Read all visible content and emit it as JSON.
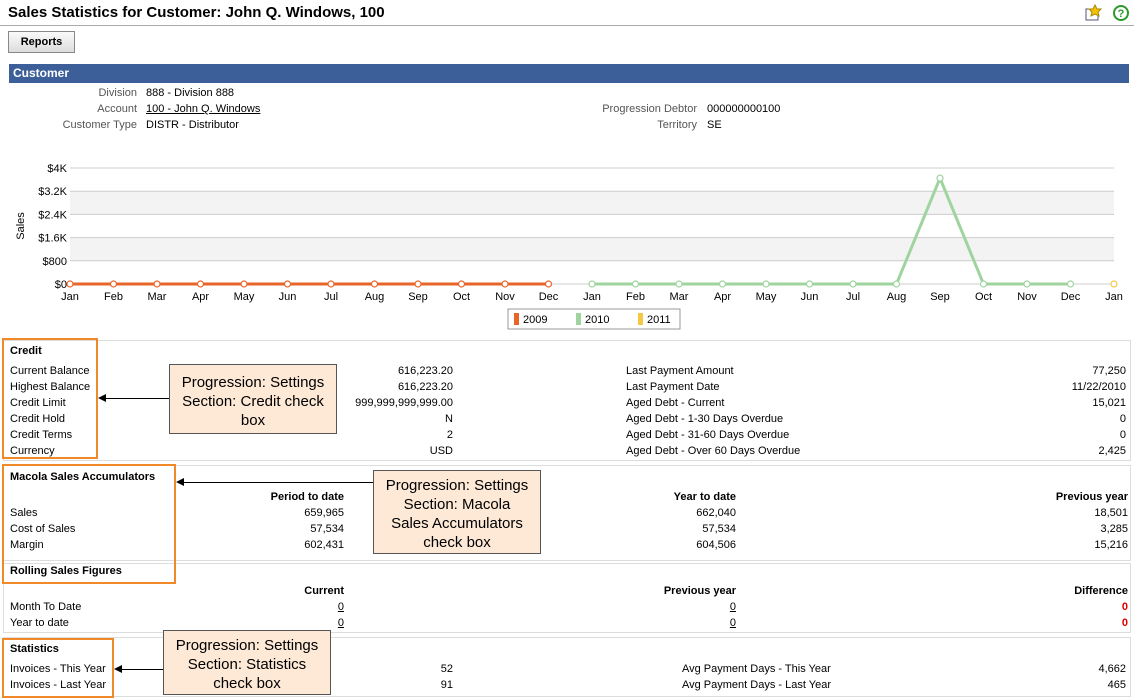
{
  "header": {
    "title": "Sales Statistics for Customer: John Q. Windows, 100",
    "button": "Reports"
  },
  "customer": {
    "title": "Customer",
    "left": [
      {
        "label": "Division",
        "value": "888 - Division 888"
      },
      {
        "label": "Account",
        "value": "100 - John Q. Windows"
      },
      {
        "label": "Customer Type",
        "value": "DISTR - Distributor"
      }
    ],
    "right": [
      {
        "label": "Progression Debtor",
        "value": "000000000100"
      },
      {
        "label": "Territory",
        "value": "SE"
      }
    ]
  },
  "chart_data": {
    "type": "line",
    "y_label": "Sales",
    "categories": [
      "Jan",
      "Feb",
      "Mar",
      "Apr",
      "May",
      "Jun",
      "Jul",
      "Aug",
      "Sep",
      "Oct",
      "Nov",
      "Dec",
      "Jan",
      "Feb",
      "Mar",
      "Apr",
      "May",
      "Jun",
      "Jul",
      "Aug",
      "Sep",
      "Oct",
      "Nov",
      "Dec",
      "Jan"
    ],
    "series": [
      {
        "name": "2009",
        "color": "#e8652a",
        "values": [
          0,
          0,
          0,
          0,
          0,
          0,
          0,
          0,
          0,
          0,
          0,
          0,
          null,
          null,
          null,
          null,
          null,
          null,
          null,
          null,
          null,
          null,
          null,
          null,
          null
        ]
      },
      {
        "name": "2010",
        "color": "#9fd49f",
        "values": [
          null,
          null,
          null,
          null,
          null,
          null,
          null,
          null,
          null,
          null,
          null,
          null,
          0,
          0,
          0,
          0,
          0,
          0,
          0,
          0,
          3650,
          0,
          0,
          0,
          null
        ]
      },
      {
        "name": "2011",
        "color": "#f5c842",
        "values": [
          null,
          null,
          null,
          null,
          null,
          null,
          null,
          null,
          null,
          null,
          null,
          null,
          null,
          null,
          null,
          null,
          null,
          null,
          null,
          null,
          null,
          null,
          null,
          null,
          0
        ]
      }
    ],
    "ylim": [
      0,
      4000
    ],
    "yticks": [
      {
        "value": 0,
        "label": "$0"
      },
      {
        "value": 800,
        "label": "$800"
      },
      {
        "value": 1600,
        "label": "$1.6K"
      },
      {
        "value": 2400,
        "label": "$2.4K"
      },
      {
        "value": 3200,
        "label": "$3.2K"
      },
      {
        "value": 4000,
        "label": "$4K"
      }
    ],
    "grid": true
  },
  "credit": {
    "title": "Credit",
    "left": [
      [
        "Current Balance",
        "616,223.20"
      ],
      [
        "Highest Balance",
        "616,223.20"
      ],
      [
        "Credit Limit",
        "999,999,999,999.00"
      ],
      [
        "Credit Hold",
        "N"
      ],
      [
        "Credit Terms",
        "2"
      ],
      [
        "Currency",
        "USD"
      ]
    ],
    "right": [
      [
        "Last Payment Amount",
        "77,250"
      ],
      [
        "Last Payment Date",
        "11/22/2010"
      ],
      [
        "Aged Debt - Current",
        "15,021"
      ],
      [
        "Aged Debt - 1-30 Days Overdue",
        "0"
      ],
      [
        "Aged Debt - 31-60 Days Overdue",
        "0"
      ],
      [
        "Aged Debt - Over 60 Days Overdue",
        "2,425"
      ]
    ]
  },
  "macola": {
    "title": "Macola Sales Accumulators",
    "columns": [
      "Period to date",
      "Year to date",
      "Previous year"
    ],
    "rows": [
      [
        "Sales",
        "659,965",
        "662,040",
        "18,501"
      ],
      [
        "Cost of Sales",
        "57,534",
        "57,534",
        "3,285"
      ],
      [
        "Margin",
        "602,431",
        "604,506",
        "15,216"
      ]
    ]
  },
  "rolling": {
    "title": "Rolling Sales Figures",
    "columns": [
      "Current",
      "Previous year",
      "Difference"
    ],
    "rows": [
      [
        "Month To Date",
        "0",
        "0",
        "0"
      ],
      [
        "Year to date",
        "0",
        "0",
        "0"
      ]
    ]
  },
  "statistics": {
    "title": "Statistics",
    "left": [
      [
        "Invoices - This Year",
        "52"
      ],
      [
        "Invoices - Last Year",
        "91"
      ]
    ],
    "right": [
      [
        "Avg Payment Days - This Year",
        "4,662"
      ],
      [
        "Avg Payment Days - Last Year",
        "465"
      ]
    ]
  },
  "callouts": [
    [
      "Progression: Settings",
      "Section: Credit check",
      "box"
    ],
    [
      "Progression: Settings",
      "Section: Macola",
      "Sales Accumulators",
      "check box"
    ],
    [
      "Progression: Settings",
      "Section: Statistics",
      "check box"
    ]
  ]
}
